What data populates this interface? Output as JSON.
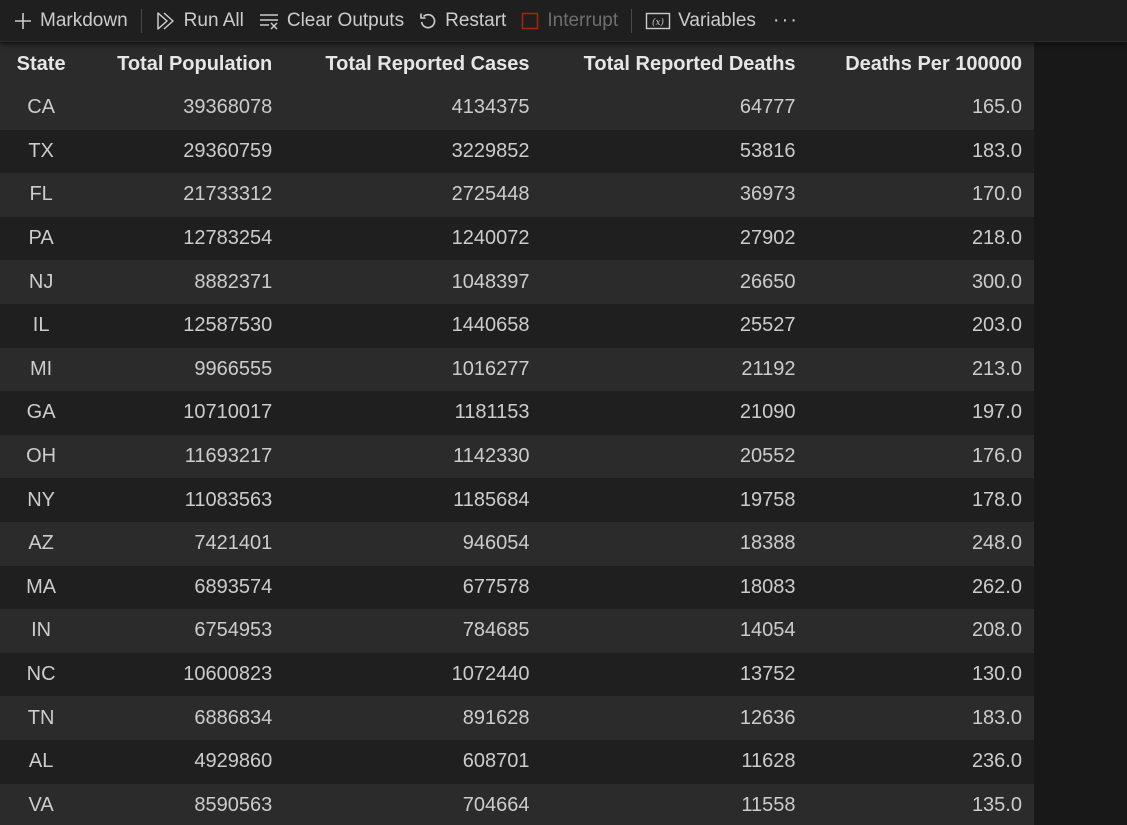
{
  "toolbar": {
    "markdown_label": "Markdown",
    "run_all_label": "Run All",
    "clear_outputs_label": "Clear Outputs",
    "restart_label": "Restart",
    "interrupt_label": "Interrupt",
    "variables_label": "Variables",
    "more_label": "···",
    "icons": {
      "markdown": "plus-icon",
      "run_all": "run-all-icon",
      "clear_outputs": "clear-all-icon",
      "restart": "restart-icon",
      "interrupt": "stop-square-icon",
      "variables": "variables-icon"
    },
    "interrupt_color": "#a1260d"
  },
  "table": {
    "columns": [
      "State",
      "Total Population",
      "Total Reported Cases",
      "Total Reported Deaths",
      "Deaths Per 100000"
    ],
    "rows": [
      [
        "CA",
        "39368078",
        "4134375",
        "64777",
        "165.0"
      ],
      [
        "TX",
        "29360759",
        "3229852",
        "53816",
        "183.0"
      ],
      [
        "FL",
        "21733312",
        "2725448",
        "36973",
        "170.0"
      ],
      [
        "PA",
        "12783254",
        "1240072",
        "27902",
        "218.0"
      ],
      [
        "NJ",
        "8882371",
        "1048397",
        "26650",
        "300.0"
      ],
      [
        "IL",
        "12587530",
        "1440658",
        "25527",
        "203.0"
      ],
      [
        "MI",
        "9966555",
        "1016277",
        "21192",
        "213.0"
      ],
      [
        "GA",
        "10710017",
        "1181153",
        "21090",
        "197.0"
      ],
      [
        "OH",
        "11693217",
        "1142330",
        "20552",
        "176.0"
      ],
      [
        "NY",
        "11083563",
        "1185684",
        "19758",
        "178.0"
      ],
      [
        "AZ",
        "7421401",
        "946054",
        "18388",
        "248.0"
      ],
      [
        "MA",
        "6893574",
        "677578",
        "18083",
        "262.0"
      ],
      [
        "IN",
        "6754953",
        "784685",
        "14054",
        "208.0"
      ],
      [
        "NC",
        "10600823",
        "1072440",
        "13752",
        "130.0"
      ],
      [
        "TN",
        "6886834",
        "891628",
        "12636",
        "183.0"
      ],
      [
        "AL",
        "4929860",
        "608701",
        "11628",
        "236.0"
      ],
      [
        "VA",
        "8590563",
        "704664",
        "11558",
        "135.0"
      ]
    ]
  }
}
